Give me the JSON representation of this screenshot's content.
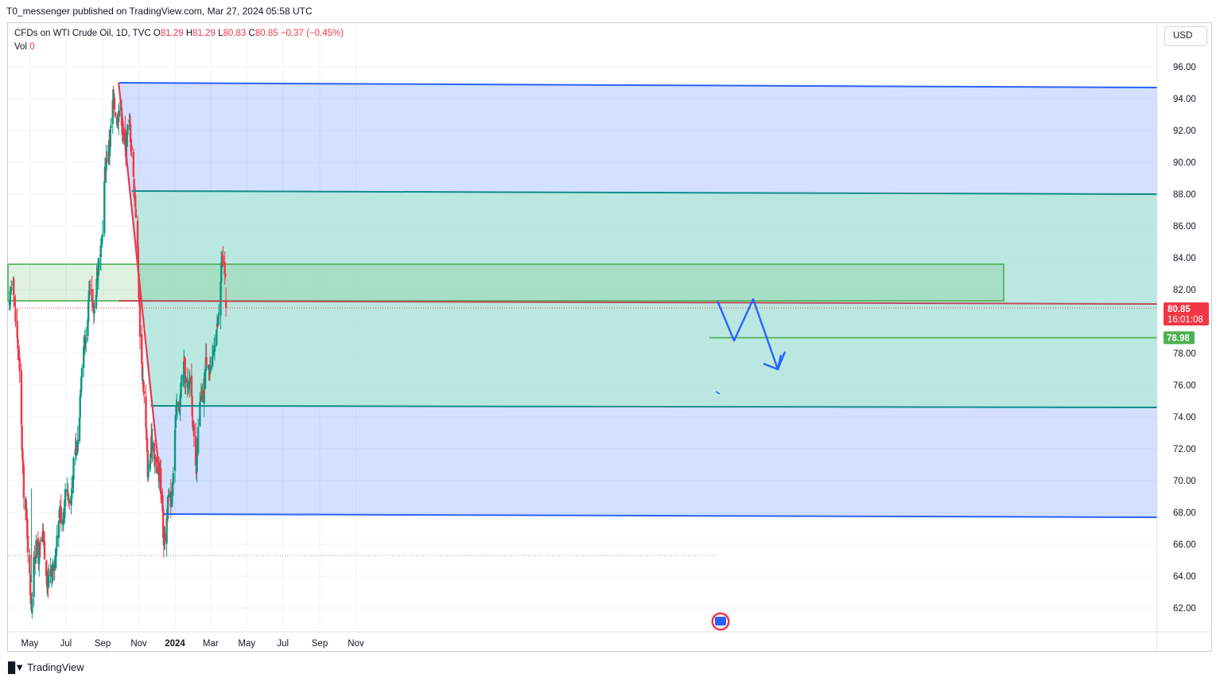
{
  "header": {
    "publisher_line": "T0_messenger published on TradingView.com, Mar 27, 2024 05:58 UTC"
  },
  "legend": {
    "symbol": "CFDs on WTI Crude Oil, 1D, TVC",
    "open_label": "O",
    "open": "81.29",
    "high_label": "H",
    "high": "81.29",
    "low_label": "L",
    "low": "80.83",
    "close_label": "C",
    "close": "80.85",
    "change": "−0.37 (−0.45%)",
    "vol_label": "Vol",
    "vol": "0"
  },
  "currency": "USD",
  "brand": "TradingView",
  "colors": {
    "up": "#089981",
    "down": "#f23645",
    "channel_blue": "#2962ff",
    "channel_green": "#26a69a",
    "zone_green": "#4caf50",
    "trend_red": "#e53950"
  },
  "chart_data": {
    "type": "candlestick",
    "symbol": "CFDs on WTI Crude Oil",
    "interval": "1D",
    "y_axis": {
      "ticks": [
        "96.00",
        "94.00",
        "92.00",
        "90.00",
        "88.00",
        "86.00",
        "84.00",
        "82.00",
        "80.00",
        "78.00",
        "76.00",
        "74.00",
        "72.00",
        "70.00",
        "68.00",
        "66.00",
        "64.00",
        "62.00"
      ],
      "range": [
        61,
        97
      ]
    },
    "x_axis": {
      "ticks": [
        {
          "label": "May",
          "bold": false
        },
        {
          "label": "Jul",
          "bold": false
        },
        {
          "label": "Sep",
          "bold": false
        },
        {
          "label": "Nov",
          "bold": false
        },
        {
          "label": "2024",
          "bold": true
        },
        {
          "label": "Mar",
          "bold": false
        },
        {
          "label": "May",
          "bold": false
        },
        {
          "label": "Jul",
          "bold": false
        },
        {
          "label": "Sep",
          "bold": false
        },
        {
          "label": "Nov",
          "bold": false
        }
      ]
    },
    "price_badges": [
      {
        "value": "80.85",
        "sub": "16:01:08",
        "color": "#f23645"
      },
      {
        "value": "78.98",
        "color": "#4caf50"
      }
    ],
    "key_prices": [
      {
        "date": "2023-04-03",
        "price": 81.5
      },
      {
        "date": "2023-05-04",
        "price": 63.6
      },
      {
        "date": "2023-06-28",
        "price": 67.0
      },
      {
        "date": "2023-09-28",
        "price": 95.0
      },
      {
        "date": "2023-10-20",
        "price": 89.8
      },
      {
        "date": "2023-11-16",
        "price": 72.4
      },
      {
        "date": "2023-12-13",
        "price": 67.7
      },
      {
        "date": "2024-01-26",
        "price": 78.0
      },
      {
        "date": "2024-02-06",
        "price": 71.4
      },
      {
        "date": "2024-03-19",
        "price": 83.0
      },
      {
        "date": "2024-03-27",
        "price": 80.85
      }
    ],
    "drawings": [
      {
        "kind": "parallel_channel",
        "color": "blue",
        "upper": 95.0,
        "lower": 67.9
      },
      {
        "kind": "parallel_channel",
        "color": "teal",
        "upper": 88.2,
        "lower": 74.7
      },
      {
        "kind": "rectangle_zone",
        "color": "green",
        "top": 83.6,
        "bottom": 81.3
      },
      {
        "kind": "trend_line",
        "color": "red",
        "from": 95.0,
        "to": 67.8
      },
      {
        "kind": "horizontal_ray",
        "color": "red",
        "price": 81.3
      },
      {
        "kind": "horizontal_line",
        "color": "green",
        "price": 78.98
      },
      {
        "kind": "projection_path",
        "color": "blue",
        "points": [
          81.3,
          78.8,
          81.4,
          77.0,
          78.1
        ]
      }
    ],
    "title": "",
    "xlabel": "",
    "ylabel": ""
  }
}
